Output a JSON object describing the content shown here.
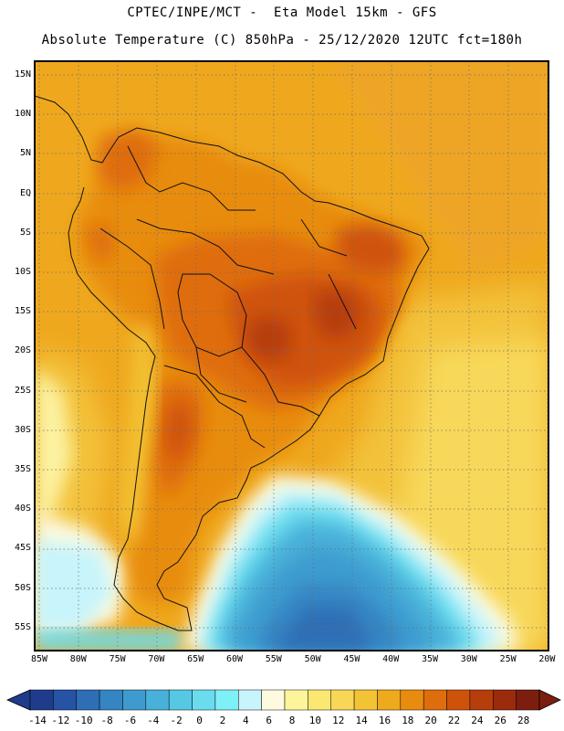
{
  "header": {
    "line1": "CPTEC/INPE/MCT -  Eta Model 15km - GFS",
    "line2": "Absolute Temperature (C) 850hPa - 25/12/2020 12UTC fct=180h"
  },
  "map": {
    "lat_labels": [
      "15N",
      "10N",
      "5N",
      "EQ",
      "5S",
      "10S",
      "15S",
      "20S",
      "25S",
      "30S",
      "35S",
      "40S",
      "45S",
      "50S",
      "55S"
    ],
    "lon_labels": [
      "85W",
      "80W",
      "75W",
      "70W",
      "65W",
      "60W",
      "55W",
      "50W",
      "45W",
      "40W",
      "35W",
      "30W",
      "25W",
      "20W"
    ],
    "colors": {
      "frame": "#000000",
      "grid": "#6b6b6b",
      "coast": "#111111"
    }
  },
  "colorbar": {
    "labels": [
      "-14",
      "-12",
      "-10",
      "-8",
      "-6",
      "-4",
      "-2",
      "0",
      "2",
      "4",
      "6",
      "8",
      "10",
      "12",
      "14",
      "16",
      "18",
      "20",
      "22",
      "24",
      "26",
      "28"
    ],
    "bins": [
      "#1f3b8c",
      "#2653a3",
      "#2d6eb5",
      "#3585c3",
      "#3e9bcf",
      "#48b1d9",
      "#57c8e3",
      "#6adcee",
      "#7ef0f7",
      "#c8f4fb",
      "#fdfadf",
      "#fcf59a",
      "#fbe872",
      "#f8d656",
      "#f3c336",
      "#eeaa1c",
      "#e88c0f",
      "#df6d0b",
      "#cf520a",
      "#b63e0b",
      "#9a2b0d",
      "#7b1e0f"
    ],
    "left_arrow_color": "#1f3b8c",
    "right_arrow_color": "#7b1e0f"
  }
}
